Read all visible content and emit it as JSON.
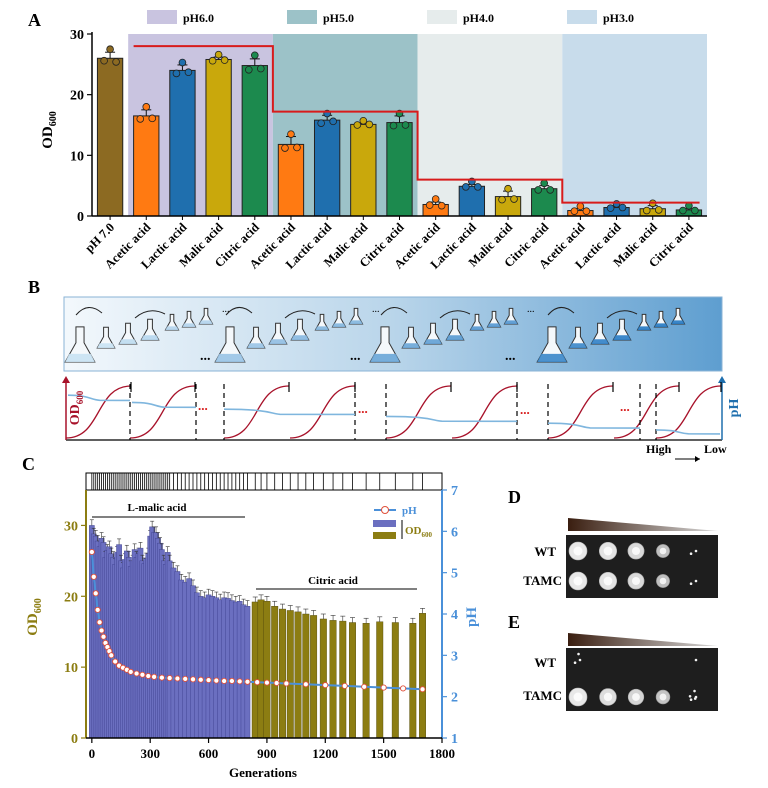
{
  "panels": {
    "A": "A",
    "B": "B",
    "C": "C",
    "D": "D",
    "E": "E"
  },
  "colors": {
    "brown": "#8C6A22",
    "orange": "#FF7A12",
    "blue": "#1F6FAE",
    "gold": "#C9A80C",
    "green": "#1C8A4E",
    "red": "#D81B1B",
    "ph_blue": "#4A90D9",
    "purple_bar": "#6B6FC0",
    "olive_bar": "#8C7D12",
    "dark_red": "#A8122A",
    "light_blue": "#7FB6DE"
  },
  "chart_data": [
    {
      "type": "bar",
      "panel": "A",
      "ylabel_main": "OD",
      "ylabel_sub": "600",
      "ylim": [
        0,
        30
      ],
      "yticks": [
        "0",
        "10",
        "20",
        "30"
      ],
      "regions": [
        {
          "label": "pH6.0",
          "color": "#C9C4E0"
        },
        {
          "label": "pH5.0",
          "color": "#9CC2C8"
        },
        {
          "label": "pH4.0",
          "color": "#E6ECEC"
        },
        {
          "label": "pH3.0",
          "color": "#C8DCEB"
        }
      ],
      "categories": [
        "pH 7.0",
        "Acetic acid",
        "Lactic acid",
        "Malic acid",
        "Citric acid",
        "Acetic acid",
        "Lactic acid",
        "Malic acid",
        "Citric acid",
        "Acetic acid",
        "Lactic acid",
        "Malic acid",
        "Citric acid",
        "Acetic acid",
        "Lactic acid",
        "Malic acid",
        "Citric acid"
      ],
      "values": [
        26.0,
        16.5,
        24.0,
        25.8,
        24.8,
        11.8,
        15.8,
        15.1,
        15.4,
        1.9,
        4.9,
        3.2,
        4.5,
        0.9,
        1.4,
        1.2,
        1.0
      ],
      "errors": [
        1.0,
        1.0,
        0.9,
        0.4,
        1.1,
        1.3,
        0.8,
        0.2,
        1.1,
        0.4,
        0.3,
        0.9,
        0.5,
        0.3,
        0.2,
        0.5,
        0.2
      ],
      "points": [
        [
          27.0,
          25.6,
          25.4
        ],
        [
          17.5,
          16.0,
          16.1
        ],
        [
          24.8,
          23.5,
          23.7
        ],
        [
          26.1,
          25.6,
          25.7
        ],
        [
          26.0,
          24.1,
          24.3
        ],
        [
          13.0,
          11.2,
          11.3
        ],
        [
          16.4,
          15.3,
          15.6
        ],
        [
          15.2,
          15.0,
          15.1
        ],
        [
          16.4,
          14.9,
          15.0
        ],
        [
          2.3,
          1.8,
          1.7
        ],
        [
          5.2,
          4.8,
          4.8
        ],
        [
          4.0,
          2.7,
          2.8
        ],
        [
          4.9,
          4.3,
          4.3
        ],
        [
          1.1,
          0.8,
          0.8
        ],
        [
          1.5,
          1.3,
          1.4
        ],
        [
          1.6,
          0.9,
          1.0
        ],
        [
          1.2,
          0.9,
          0.9
        ]
      ],
      "bar_colors": [
        "brown",
        "orange",
        "blue",
        "gold",
        "green",
        "orange",
        "blue",
        "gold",
        "green",
        "orange",
        "blue",
        "gold",
        "green",
        "orange",
        "blue",
        "gold",
        "green"
      ],
      "threshold_steps": [
        28,
        17.2,
        6.0,
        2.2
      ]
    },
    {
      "type": "diagram",
      "panel": "B",
      "ylabel_left_main": "OD",
      "ylabel_left_sub": "600",
      "ylabel_right": "pH",
      "high_label": "High",
      "low_label": "Low",
      "dots": "...",
      "stage_count": 4,
      "ph_levels": [
        0.2,
        0.33,
        0.45,
        0.58,
        0.7,
        0.82
      ]
    },
    {
      "type": "bar",
      "panel": "C",
      "xlabel": "Generations",
      "ylabel_left_main": "OD",
      "ylabel_left_sub": "600",
      "ylabel_right": "pH",
      "xlim": [
        -30,
        1800
      ],
      "xticks": [
        "0",
        "300",
        "600",
        "900",
        "1200",
        "1500",
        "1800"
      ],
      "ylim_left": [
        0,
        35
      ],
      "yticks_left": [
        "0",
        "10",
        "20",
        "30"
      ],
      "ylim_right": [
        1,
        7
      ],
      "yticks_right": [
        "1",
        "2",
        "3",
        "4",
        "5",
        "6",
        "7"
      ],
      "legend": {
        "ph": "pH",
        "od_main": "OD",
        "od_sub": "600"
      },
      "annotations": {
        "malic": "L-malic acid",
        "citric": "Citric acid"
      },
      "malic_gens": [
        0,
        10,
        20,
        30,
        40,
        50,
        60,
        70,
        80,
        90,
        100,
        110,
        120,
        130,
        140,
        150,
        160,
        170,
        180,
        190,
        200,
        210,
        220,
        230,
        240,
        250,
        260,
        270,
        280,
        290,
        300,
        310,
        320,
        330,
        340,
        350,
        360,
        370,
        380,
        390,
        400,
        420,
        440,
        460,
        480,
        500,
        520,
        540,
        560,
        580,
        600,
        620,
        640,
        660,
        680,
        700,
        720,
        740,
        760,
        780,
        800
      ],
      "malic_od": [
        30,
        28.8,
        28.5,
        27.8,
        27,
        28.2,
        27.6,
        25.5,
        26.5,
        27,
        26,
        25.5,
        24.5,
        26.2,
        27.3,
        25,
        24,
        25.2,
        26.4,
        25.5,
        24.2,
        25,
        26.6,
        25.5,
        26,
        26.8,
        25,
        24.6,
        25.3,
        26,
        28.5,
        29.8,
        29,
        29,
        28.2,
        27.5,
        26.6,
        25,
        24.5,
        26.2,
        25,
        24,
        23.5,
        22.3,
        22,
        22.5,
        21.5,
        20.5,
        20,
        19.8,
        20.2,
        20,
        19.8,
        19.5,
        19.8,
        19.7,
        19.4,
        19.2,
        19.3,
        18.8,
        18.6
      ],
      "citric_gens": [
        840,
        870,
        900,
        940,
        980,
        1020,
        1060,
        1100,
        1140,
        1190,
        1240,
        1290,
        1340,
        1410,
        1480,
        1560,
        1650,
        1700
      ],
      "citric_od": [
        19.2,
        19.5,
        19.3,
        18.6,
        18.2,
        18,
        17.8,
        17.5,
        17.3,
        16.8,
        16.6,
        16.5,
        16.3,
        16.2,
        16.4,
        16.3,
        16.2,
        17.6
      ],
      "ph_gens": [
        0,
        10,
        20,
        30,
        40,
        50,
        60,
        70,
        80,
        90,
        100,
        120,
        140,
        160,
        180,
        200,
        230,
        260,
        290,
        320,
        360,
        400,
        440,
        480,
        520,
        560,
        600,
        640,
        680,
        720,
        760,
        800,
        850,
        900,
        950,
        1000,
        1100,
        1200,
        1300,
        1400,
        1500,
        1600,
        1700
      ],
      "ph_vals": [
        5.5,
        4.9,
        4.5,
        4.1,
        3.8,
        3.6,
        3.45,
        3.3,
        3.2,
        3.1,
        3.0,
        2.85,
        2.75,
        2.7,
        2.65,
        2.6,
        2.56,
        2.53,
        2.5,
        2.48,
        2.46,
        2.45,
        2.44,
        2.43,
        2.42,
        2.41,
        2.4,
        2.39,
        2.38,
        2.38,
        2.37,
        2.36,
        2.35,
        2.34,
        2.33,
        2.32,
        2.3,
        2.28,
        2.26,
        2.24,
        2.22,
        2.2,
        2.18
      ]
    }
  ],
  "panelD": {
    "wt": "WT",
    "tamc": "TAMC",
    "wt_growth": [
      1.0,
      0.95,
      0.85,
      0.6,
      0.15
    ],
    "tamc_growth": [
      1.0,
      0.95,
      0.85,
      0.6,
      0.2
    ]
  },
  "panelE": {
    "wt": "WT",
    "tamc": "TAMC",
    "wt_growth": [
      0.25,
      0,
      0,
      0,
      0.05
    ],
    "tamc_growth": [
      1.0,
      0.9,
      0.8,
      0.65,
      0.45
    ]
  }
}
